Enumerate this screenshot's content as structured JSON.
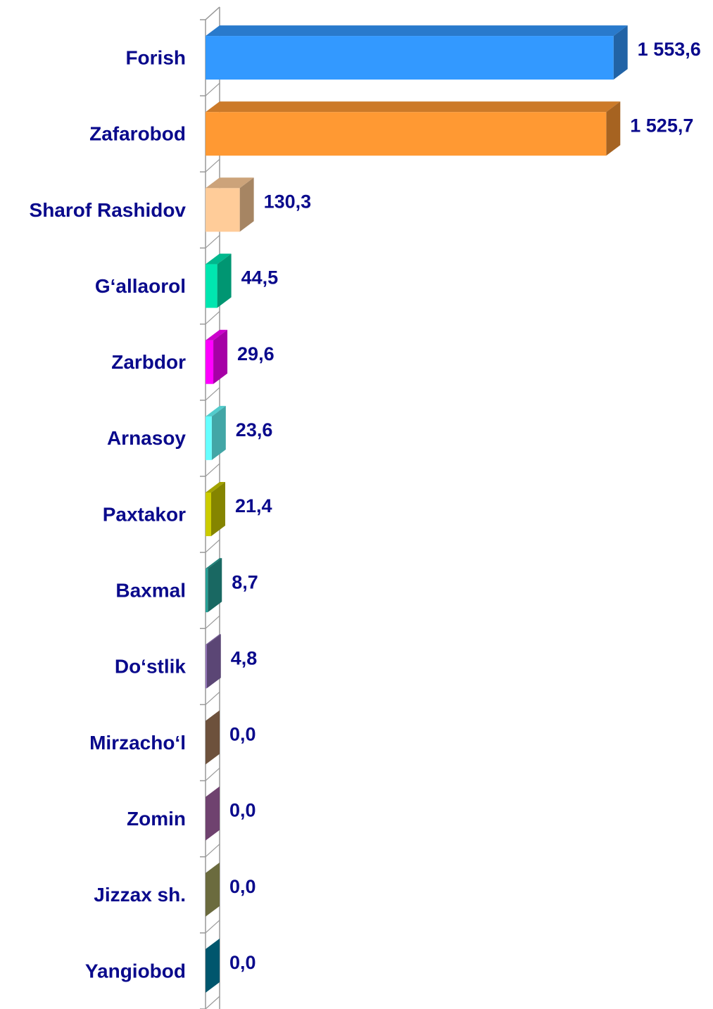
{
  "chart_data": {
    "type": "bar",
    "orientation": "horizontal",
    "categories": [
      "Forish",
      "Zafarobod",
      "Sharof Rashidov",
      "G‘allaorol",
      "Zarbdor",
      "Arnasoy",
      "Paxtakor",
      "Baxmal",
      "Do‘stlik",
      "Mirzacho‘l",
      "Zomin",
      "Jizzax sh.",
      "Yangiobod"
    ],
    "values": [
      1553.6,
      1525.7,
      130.3,
      44.5,
      29.6,
      23.6,
      21.4,
      8.7,
      4.8,
      0.0,
      0.0,
      0.0,
      0.0
    ],
    "value_labels": [
      "1 553,6",
      "1 525,7",
      "130,3",
      "44,5",
      "29,6",
      "23,6",
      "21,4",
      "8,7",
      "4,8",
      "0,0",
      "0,0",
      "0,0",
      "0,0"
    ],
    "colors": [
      "#3399ff",
      "#ff9933",
      "#ffcc99",
      "#00e6b0",
      "#ff00ff",
      "#66ffff",
      "#cccc00",
      "#26a096",
      "#8c6cb4",
      "#a87c5c",
      "#aa66aa",
      "#a4a460",
      "#0085a8"
    ],
    "xlim": [
      0,
      1600
    ]
  }
}
